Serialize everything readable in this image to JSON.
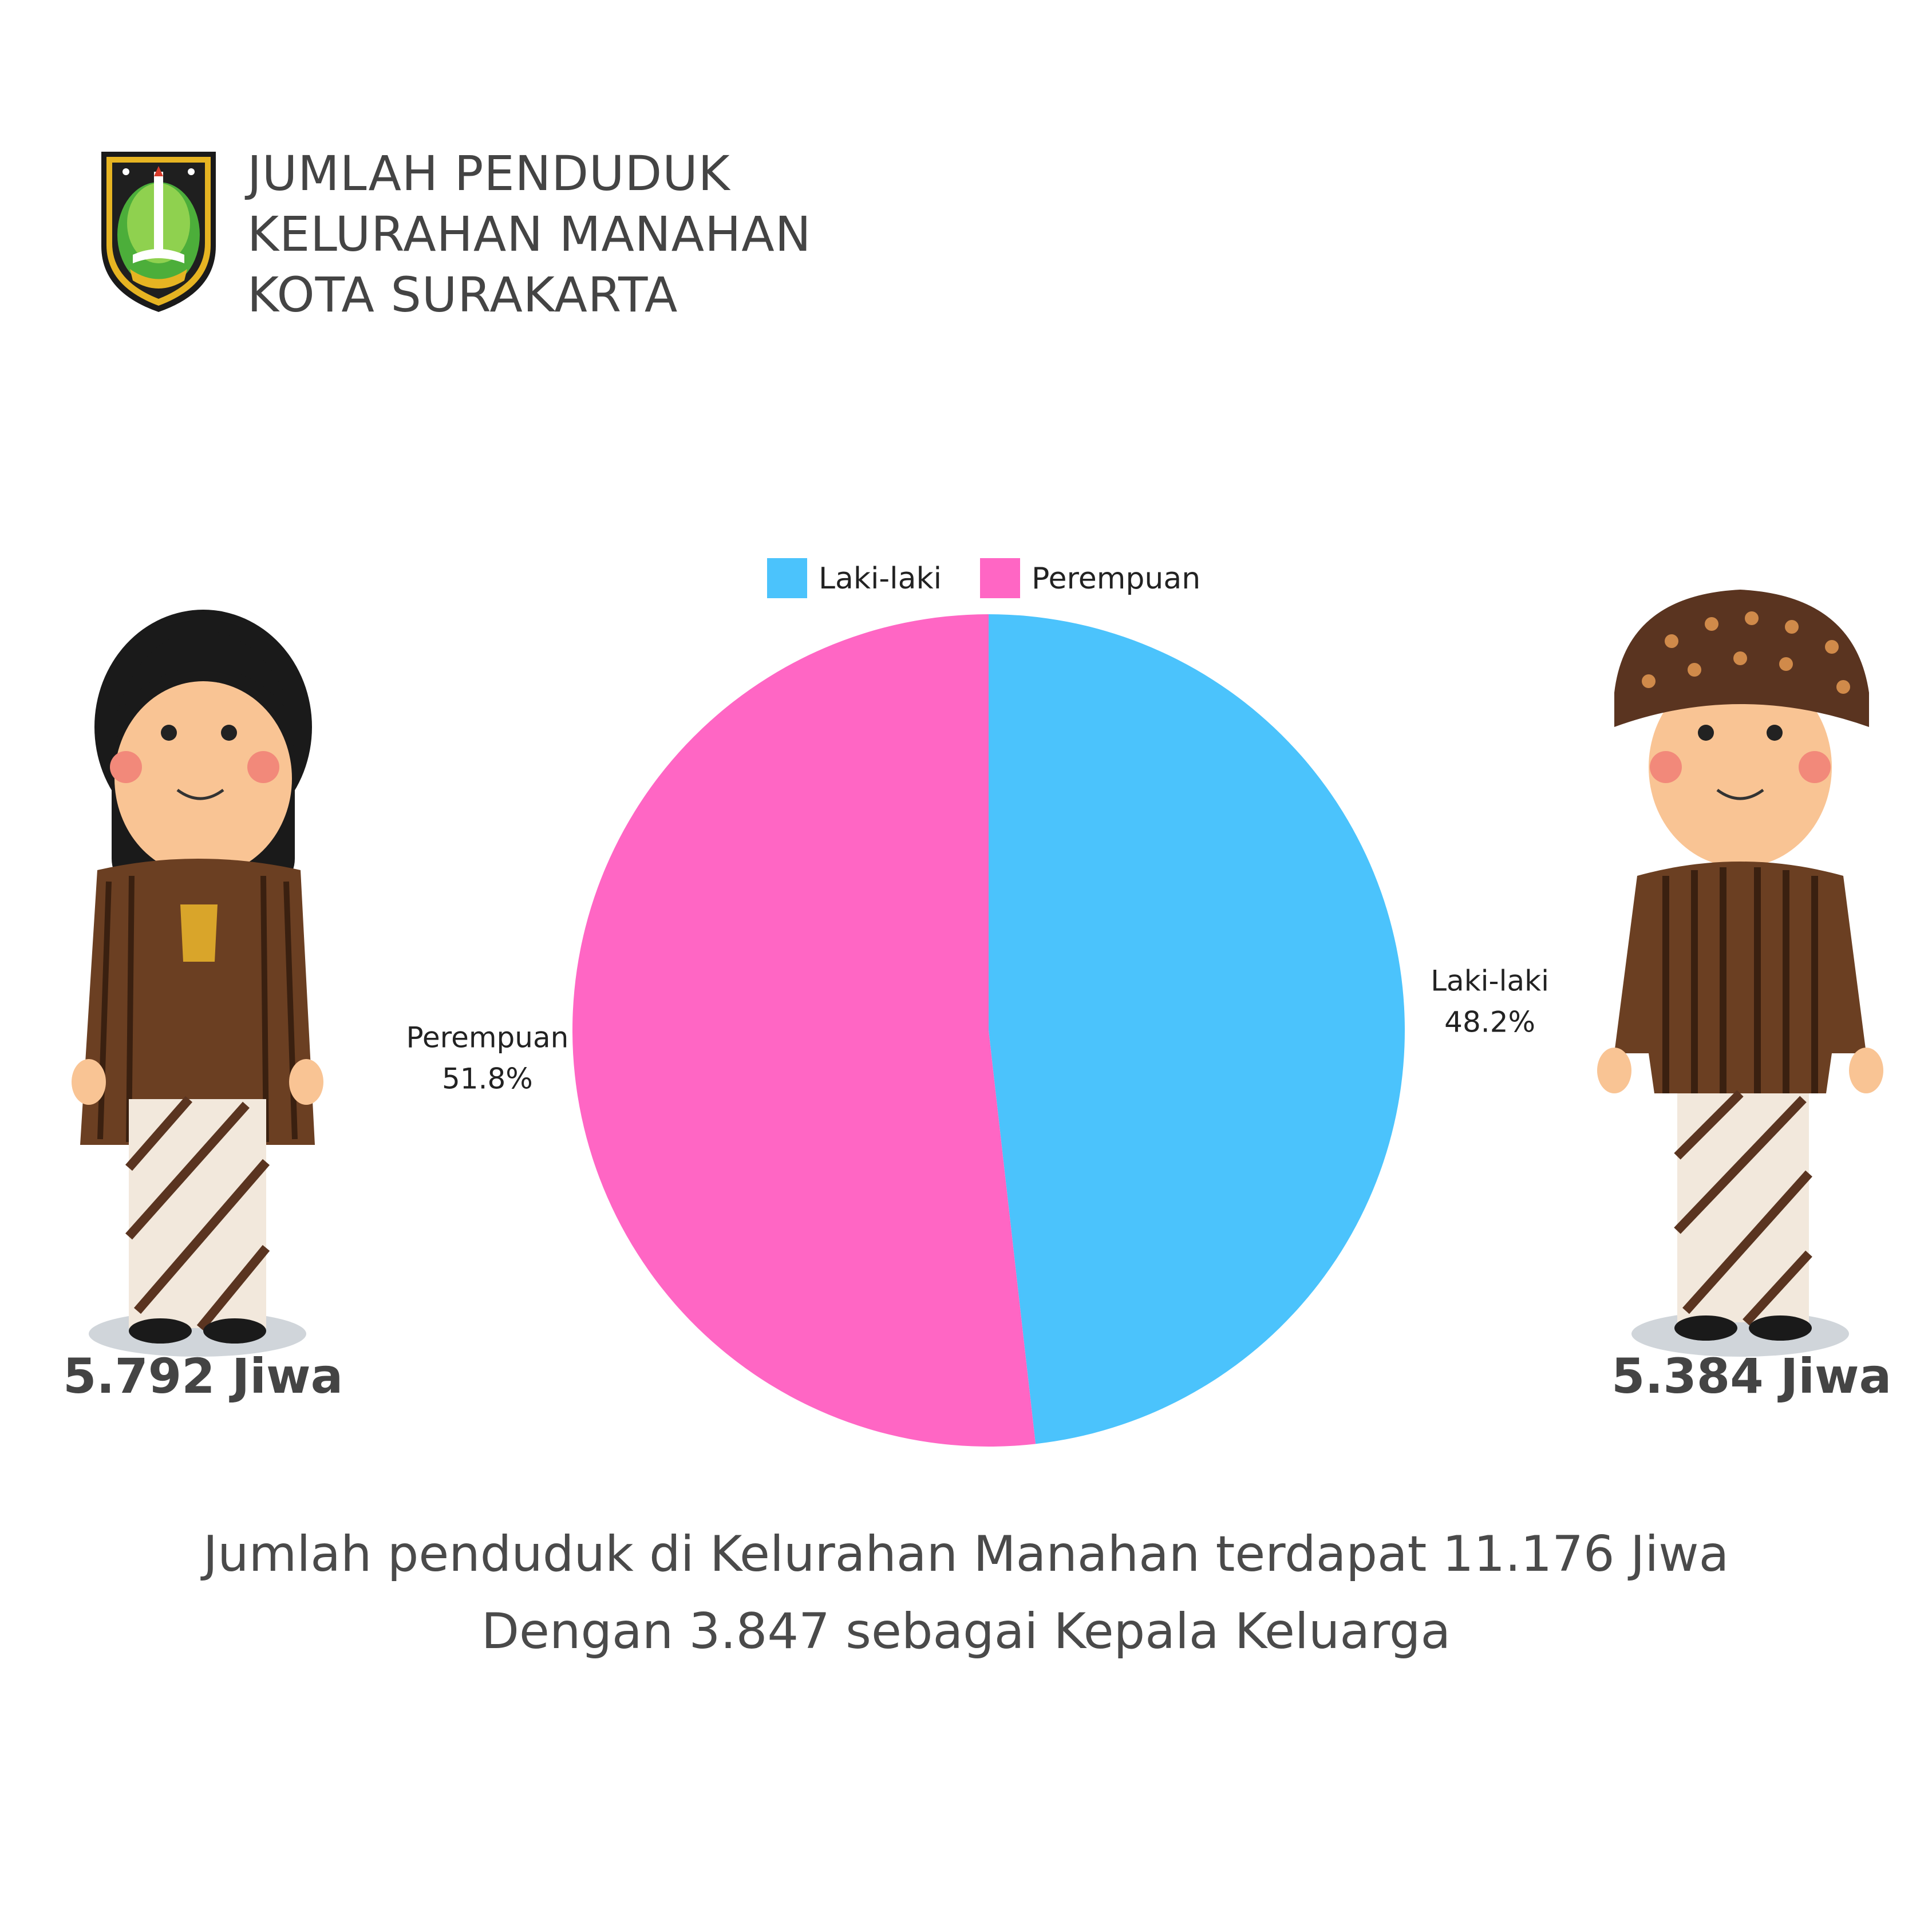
{
  "header": {
    "title_lines": [
      "JUMLAH PENDUDUK",
      "KELURAHAN MANAHAN",
      "KOTA SURAKARTA"
    ],
    "emblem_icon": "surakarta-coat-of-arms-icon"
  },
  "chart_data": {
    "type": "pie",
    "legend_position": "top",
    "slices": [
      {
        "label": "Laki-laki",
        "percent": 48.2,
        "percent_label": "48.2%",
        "color": "#4BC3FC"
      },
      {
        "label": "Perempuan",
        "percent": 51.8,
        "percent_label": "51.8%",
        "color": "#FF66C4"
      }
    ]
  },
  "figures": {
    "female": {
      "count_label": "5.792 Jiwa",
      "icon": "female-javanese-figure-icon"
    },
    "male": {
      "count_label": "5.384 Jiwa",
      "icon": "male-javanese-figure-icon"
    }
  },
  "summary": {
    "line1": "Jumlah penduduk di Kelurahan Manahan terdapat 11.176 Jiwa",
    "line2": "Dengan 3.847 sebagai Kepala Keluarga"
  }
}
